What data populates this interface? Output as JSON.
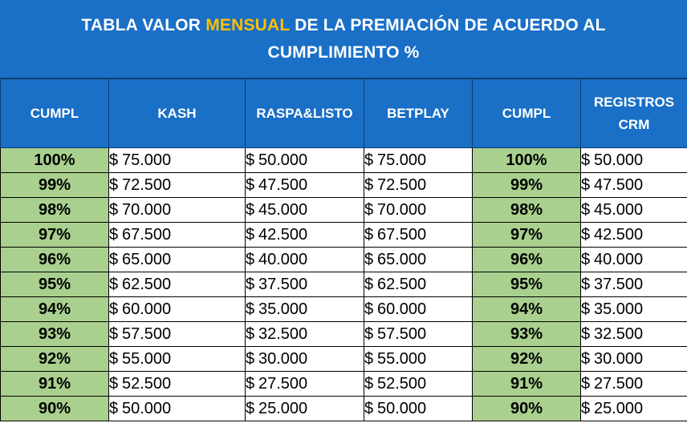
{
  "title": {
    "before": "TABLA VALOR ",
    "highlight": "MENSUAL",
    "after": " DE LA PREMIACIÓN DE ACUERDO AL CUMPLIMIENTO %"
  },
  "headers": [
    "CUMPL",
    "KASH",
    "RASPA&LISTO",
    "BETPLAY",
    "CUMPL",
    "REGISTROS CRM"
  ],
  "currency": "$",
  "rows": [
    {
      "cumpl": "100%",
      "kash": "75.000",
      "raspa": "50.000",
      "betplay": "75.000",
      "cumpl2": "100%",
      "crm": "50.000"
    },
    {
      "cumpl": "99%",
      "kash": "72.500",
      "raspa": "47.500",
      "betplay": "72.500",
      "cumpl2": "99%",
      "crm": "47.500"
    },
    {
      "cumpl": "98%",
      "kash": "70.000",
      "raspa": "45.000",
      "betplay": "70.000",
      "cumpl2": "98%",
      "crm": "45.000"
    },
    {
      "cumpl": "97%",
      "kash": "67.500",
      "raspa": "42.500",
      "betplay": "67.500",
      "cumpl2": "97%",
      "crm": "42.500"
    },
    {
      "cumpl": "96%",
      "kash": "65.000",
      "raspa": "40.000",
      "betplay": "65.000",
      "cumpl2": "96%",
      "crm": "40.000"
    },
    {
      "cumpl": "95%",
      "kash": "62.500",
      "raspa": "37.500",
      "betplay": "62.500",
      "cumpl2": "95%",
      "crm": "37.500"
    },
    {
      "cumpl": "94%",
      "kash": "60.000",
      "raspa": "35.000",
      "betplay": "60.000",
      "cumpl2": "94%",
      "crm": "35.000"
    },
    {
      "cumpl": "93%",
      "kash": "57.500",
      "raspa": "32.500",
      "betplay": "57.500",
      "cumpl2": "93%",
      "crm": "32.500"
    },
    {
      "cumpl": "92%",
      "kash": "55.000",
      "raspa": "30.000",
      "betplay": "55.000",
      "cumpl2": "92%",
      "crm": "30.000"
    },
    {
      "cumpl": "91%",
      "kash": "52.500",
      "raspa": "27.500",
      "betplay": "52.500",
      "cumpl2": "91%",
      "crm": "27.500"
    },
    {
      "cumpl": "90%",
      "kash": "50.000",
      "raspa": "25.000",
      "betplay": "50.000",
      "cumpl2": "90%",
      "crm": "25.000"
    }
  ],
  "colors": {
    "header_blue": "#1a6fc6",
    "highlight_gold": "#ffc000",
    "pct_green": "#a9d08e"
  }
}
